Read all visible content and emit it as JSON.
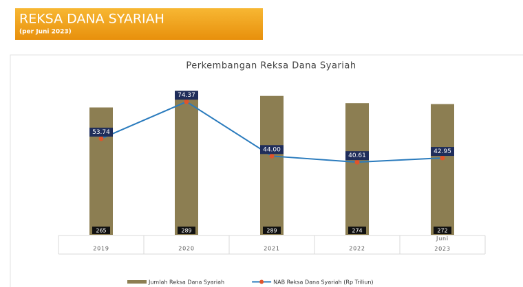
{
  "banner": {
    "title": "REKSA DANA SYARIAH",
    "subtitle": "(per Juni 2023)"
  },
  "chart_data": {
    "type": "bar-line",
    "title": "Perkembangan Reksa Dana Syariah",
    "categories": [
      "2019",
      "2020",
      "2021",
      "2022",
      "Juni 2023"
    ],
    "series": [
      {
        "name": "Jumlah Reksa Dana Syariah",
        "type": "bar",
        "color": "#8c7e52",
        "values": [
          265,
          289,
          289,
          274,
          272
        ]
      },
      {
        "name": "NAB Reksa Dana Syariah (Rp Triliun)",
        "type": "line",
        "axis": "y2",
        "color": "#2a7bbd",
        "marker_color": "#e0542a",
        "values": [
          53.74,
          74.37,
          44,
          40.61,
          42.95
        ],
        "value_labels": [
          "53.74",
          "74.37",
          "44.00",
          "40.61",
          "42.95"
        ]
      }
    ],
    "ylim": [
      0,
      350
    ],
    "y2lim": [
      0,
      94
    ],
    "legend": "bottom"
  }
}
